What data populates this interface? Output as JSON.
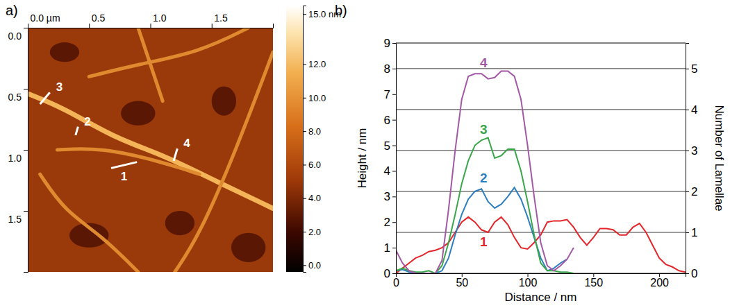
{
  "chart_data": [
    {
      "type": "image",
      "title": "a)",
      "xlim": [
        0,
        2
      ],
      "ylim": [
        0,
        2
      ],
      "xticks": [
        {
          "value": 0,
          "label": "0.0 µm"
        },
        {
          "value": 0.5,
          "label": "0.5"
        },
        {
          "value": 1,
          "label": "1.0"
        },
        {
          "value": 1.5,
          "label": "1.5"
        }
      ],
      "yticks": [
        {
          "value": 0,
          "label": "0.0"
        },
        {
          "value": 0.5,
          "label": "0.5"
        },
        {
          "value": 1,
          "label": "1.0"
        },
        {
          "value": 1.5,
          "label": "1.5"
        }
      ],
      "colorbar_range": [
        -0.4,
        15.5
      ],
      "colorbar_ticks": [
        {
          "value": 0,
          "label": "0.0"
        },
        {
          "value": 2,
          "label": "2.0"
        },
        {
          "value": 4,
          "label": "4.0"
        },
        {
          "value": 6,
          "label": "6.0"
        },
        {
          "value": 8,
          "label": "8.0"
        },
        {
          "value": 10,
          "label": "10.0"
        },
        {
          "value": 12,
          "label": "12.0"
        },
        {
          "value": 15,
          "label": "15.0 nm"
        }
      ],
      "profiles": [
        {
          "name": "1",
          "x": [
            0.68,
            0.89
          ],
          "y": [
            1.15,
            1.1
          ]
        },
        {
          "name": "2",
          "x": [
            0.39,
            0.41
          ],
          "y": [
            0.88,
            0.81
          ]
        },
        {
          "name": "3",
          "x": [
            0.1,
            0.18
          ],
          "y": [
            0.625,
            0.53
          ]
        },
        {
          "name": "4",
          "x": [
            1.19,
            1.22
          ],
          "y": [
            1.09,
            0.99
          ]
        }
      ]
    },
    {
      "type": "line",
      "title": "b)",
      "xlabel": "Distance / nm",
      "ylabel": "Height / nm",
      "y2label": "Number of Lamellae",
      "x": [
        0,
        5,
        10,
        15,
        20,
        25,
        30,
        35,
        40,
        45,
        50,
        55,
        60,
        65,
        70,
        75,
        80,
        85,
        90,
        95,
        100,
        105,
        110,
        115,
        120,
        125,
        130,
        135,
        140,
        145,
        150,
        155,
        160,
        165,
        170,
        175,
        180,
        185,
        190,
        195,
        200,
        205,
        210,
        215,
        220
      ],
      "xlim": [
        0,
        220
      ],
      "xticks": [
        0,
        50,
        100,
        150,
        200
      ],
      "ylim": [
        0,
        9
      ],
      "yticks": [
        0,
        1,
        2,
        3,
        4,
        5,
        6,
        7,
        8,
        9
      ],
      "y2lim": [
        0,
        5.625
      ],
      "y2ticks": [
        0,
        1,
        2,
        3,
        4,
        5
      ],
      "grid": true,
      "series": [
        {
          "name": "1",
          "color": "#e2262b",
          "values": [
            0,
            0.2,
            0.4,
            0.6,
            0.7,
            0.85,
            0.9,
            1.0,
            1.2,
            1.6,
            2.0,
            2.2,
            2.0,
            1.7,
            1.6,
            2.0,
            2.2,
            1.9,
            1.4,
            1.0,
            0.95,
            1.2,
            1.5,
            2.0,
            2.05,
            2.05,
            2.1,
            1.8,
            1.4,
            1.1,
            1.4,
            1.75,
            1.75,
            1.7,
            1.5,
            1.5,
            1.8,
            1.95,
            1.6,
            1.1,
            0.6,
            0.35,
            0.25,
            0.1,
            0.05
          ]
        },
        {
          "name": "2",
          "color": "#2e7fc0",
          "values": [
            0.1,
            0.15,
            0.05,
            0,
            0,
            0,
            0,
            0.1,
            0.6,
            1.5,
            2.3,
            2.9,
            3.2,
            3.3,
            2.8,
            2.55,
            2.7,
            3.0,
            3.35,
            2.9,
            2.2,
            1.4,
            0.6,
            0.1,
            0.2,
            0.4,
            0.55,
            null,
            null,
            null,
            null,
            null,
            null,
            null,
            null,
            null,
            null,
            null,
            null,
            null,
            null,
            null,
            null,
            null,
            null
          ]
        },
        {
          "name": "3",
          "color": "#3aa64a",
          "values": [
            0.1,
            0.2,
            0.1,
            0.05,
            0.05,
            0.1,
            0.0,
            0.3,
            1.2,
            2.3,
            3.5,
            4.4,
            5.0,
            5.2,
            5.3,
            4.5,
            4.6,
            4.85,
            4.85,
            4.0,
            2.8,
            1.5,
            0.4,
            0.1,
            0.1,
            0.05,
            0.05,
            0.0,
            null,
            null,
            null,
            null,
            null,
            null,
            null,
            null,
            null,
            null,
            null,
            null,
            null,
            null,
            null,
            null,
            null
          ]
        },
        {
          "name": "4",
          "color": "#a358a6",
          "values": [
            0.9,
            0.4,
            0.1,
            0,
            0,
            0,
            0,
            0.5,
            2.5,
            4.8,
            6.8,
            7.7,
            7.8,
            7.8,
            7.6,
            7.65,
            7.9,
            7.9,
            7.7,
            6.8,
            5.0,
            3.0,
            1.2,
            0.3,
            0.1,
            0.3,
            0.55,
            1.0,
            null,
            null,
            null,
            null,
            null,
            null,
            null,
            null,
            null,
            null,
            null,
            null,
            null,
            null,
            null,
            null,
            null
          ]
        }
      ]
    }
  ]
}
